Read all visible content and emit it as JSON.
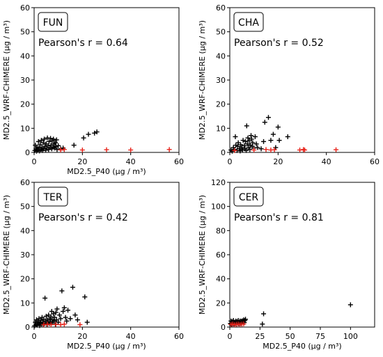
{
  "chart_data": [
    {
      "type": "scatter",
      "panel": "FUN",
      "label": "FUN",
      "annotation": "Pearson's r = 0.64",
      "xlabel": "MD2.5_P40 (µg / m³)",
      "ylabel": "MD2.5_WRF-CHIMERE (µg / m³)",
      "xlim": [
        0,
        60
      ],
      "ylim": [
        0,
        60
      ],
      "xticks": [
        0,
        20,
        40,
        60
      ],
      "yticks": [
        0,
        10,
        20,
        30,
        40,
        50,
        60
      ],
      "series": [
        {
          "color": "#000000",
          "points": [
            [
              0.3,
              0.8
            ],
            [
              0.5,
              3.0
            ],
            [
              0.8,
              1.5
            ],
            [
              1,
              0.5
            ],
            [
              1.2,
              2.2
            ],
            [
              1.5,
              1.0
            ],
            [
              1.8,
              4.5
            ],
            [
              2,
              1.8
            ],
            [
              2.2,
              0.6
            ],
            [
              2.5,
              3.2
            ],
            [
              2.8,
              1.2
            ],
            [
              3,
              5.0
            ],
            [
              3.2,
              2.0
            ],
            [
              3.5,
              0.8
            ],
            [
              3.8,
              4.0
            ],
            [
              4,
              1.5
            ],
            [
              4.2,
              5.5
            ],
            [
              4.5,
              2.5
            ],
            [
              4.8,
              0.9
            ],
            [
              5,
              3.5
            ],
            [
              5.2,
              1.8
            ],
            [
              5.5,
              6.0
            ],
            [
              5.8,
              2.8
            ],
            [
              6,
              1.2
            ],
            [
              6.2,
              4.5
            ],
            [
              6.5,
              2.0
            ],
            [
              6.8,
              5.8
            ],
            [
              7,
              3.0
            ],
            [
              7.3,
              1.5
            ],
            [
              7.5,
              4.8
            ],
            [
              7.8,
              2.2
            ],
            [
              8,
              5.5
            ],
            [
              8.3,
              3.5
            ],
            [
              8.5,
              1.8
            ],
            [
              8.8,
              4.0
            ],
            [
              9,
              2.5
            ],
            [
              9.3,
              5.2
            ],
            [
              9.5,
              1.2
            ],
            [
              10,
              2.8
            ],
            [
              11,
              1.5
            ],
            [
              12,
              1.8
            ],
            [
              16.5,
              3.0
            ],
            [
              20.5,
              6.0
            ],
            [
              22.5,
              7.5
            ],
            [
              25,
              8.0
            ],
            [
              26,
              8.5
            ]
          ]
        },
        {
          "color": "#e8231a",
          "points": [
            [
              11,
              1.0
            ],
            [
              12.5,
              1.2
            ],
            [
              20,
              1.0
            ],
            [
              30,
              1.1
            ],
            [
              40,
              1.0
            ],
            [
              56,
              1.2
            ]
          ]
        }
      ]
    },
    {
      "type": "scatter",
      "panel": "CHA",
      "label": "CHA",
      "annotation": "Pearson's r = 0.52",
      "xlabel": "",
      "ylabel": "MD2.5_WRF-CHIMERE (µg / m³)",
      "xlim": [
        0,
        60
      ],
      "ylim": [
        0,
        60
      ],
      "xticks": [
        0,
        20,
        40,
        60
      ],
      "yticks": [
        0,
        10,
        20,
        30,
        40,
        50,
        60
      ],
      "series": [
        {
          "color": "#000000",
          "points": [
            [
              0.5,
              1.0
            ],
            [
              1,
              0.5
            ],
            [
              1.5,
              2.0
            ],
            [
              2,
              1.2
            ],
            [
              2.3,
              6.5
            ],
            [
              2.5,
              3.0
            ],
            [
              3,
              0.8
            ],
            [
              3.3,
              2.5
            ],
            [
              3.5,
              4.0
            ],
            [
              4,
              1.5
            ],
            [
              4.3,
              0.6
            ],
            [
              4.5,
              3.2
            ],
            [
              5,
              2.0
            ],
            [
              5.3,
              1.0
            ],
            [
              5.5,
              5.0
            ],
            [
              6,
              2.8
            ],
            [
              6.3,
              1.5
            ],
            [
              6.5,
              4.5
            ],
            [
              6.8,
              0.8
            ],
            [
              7,
              11.0
            ],
            [
              7.3,
              3.5
            ],
            [
              7.5,
              6.0
            ],
            [
              7.8,
              2.0
            ],
            [
              8,
              4.8
            ],
            [
              8.3,
              1.2
            ],
            [
              8.5,
              3.0
            ],
            [
              8.8,
              7.0
            ],
            [
              9,
              5.5
            ],
            [
              9.3,
              2.5
            ],
            [
              9.5,
              4.0
            ],
            [
              10,
              1.8
            ],
            [
              10.5,
              6.5
            ],
            [
              11,
              3.5
            ],
            [
              11.5,
              2.0
            ],
            [
              13,
              1.5
            ],
            [
              14,
              4.5
            ],
            [
              14.5,
              12.5
            ],
            [
              16,
              14.5
            ],
            [
              17,
              5.0
            ],
            [
              18,
              7.5
            ],
            [
              19,
              2.0
            ],
            [
              20,
              10.5
            ],
            [
              20.5,
              5.0
            ],
            [
              24,
              6.5
            ]
          ]
        },
        {
          "color": "#e8231a",
          "points": [
            [
              2,
              0.8
            ],
            [
              10,
              1.0
            ],
            [
              15,
              1.2
            ],
            [
              17,
              1.0
            ],
            [
              18.5,
              1.1
            ],
            [
              29,
              1.0
            ],
            [
              30.5,
              1.2
            ],
            [
              31,
              1.0
            ],
            [
              44,
              1.1
            ]
          ]
        }
      ]
    },
    {
      "type": "scatter",
      "panel": "TER",
      "label": "TER",
      "annotation": "Pearson's r = 0.42",
      "xlabel": "MD2.5_P40 (µg / m³)",
      "ylabel": "MD2.5_WRF-CHIMERE (µg / m³)",
      "xlim": [
        0,
        60
      ],
      "ylim": [
        0,
        60
      ],
      "xticks": [
        0,
        20,
        40,
        60
      ],
      "yticks": [
        0,
        10,
        20,
        30,
        40,
        50,
        60
      ],
      "series": [
        {
          "color": "#000000",
          "points": [
            [
              0.2,
              0.5
            ],
            [
              0.5,
              2.0
            ],
            [
              0.8,
              1.0
            ],
            [
              1,
              3.0
            ],
            [
              1.3,
              0.8
            ],
            [
              1.5,
              2.2
            ],
            [
              1.8,
              1.5
            ],
            [
              2,
              3.5
            ],
            [
              2.3,
              0.6
            ],
            [
              2.5,
              1.8
            ],
            [
              2.8,
              2.8
            ],
            [
              3,
              1.2
            ],
            [
              3.3,
              4.0
            ],
            [
              3.5,
              2.0
            ],
            [
              3.8,
              0.9
            ],
            [
              4,
              3.2
            ],
            [
              4.3,
              1.5
            ],
            [
              4.5,
              12.0
            ],
            [
              4.8,
              2.5
            ],
            [
              5,
              4.5
            ],
            [
              5.3,
              1.0
            ],
            [
              5.5,
              3.0
            ],
            [
              5.8,
              2.0
            ],
            [
              6,
              5.0
            ],
            [
              6.3,
              1.5
            ],
            [
              6.5,
              3.5
            ],
            [
              6.8,
              2.2
            ],
            [
              7,
              4.2
            ],
            [
              7.3,
              6.5
            ],
            [
              7.5,
              1.8
            ],
            [
              7.8,
              3.0
            ],
            [
              8,
              5.5
            ],
            [
              8.3,
              2.5
            ],
            [
              8.5,
              4.0
            ],
            [
              8.8,
              1.2
            ],
            [
              9,
              6.0
            ],
            [
              9.3,
              3.0
            ],
            [
              9.5,
              7.5
            ],
            [
              10,
              2.0
            ],
            [
              10.5,
              5.0
            ],
            [
              11,
              3.5
            ],
            [
              11.5,
              15.0
            ],
            [
              12,
              6.5
            ],
            [
              12.5,
              8.0
            ],
            [
              13,
              4.0
            ],
            [
              13.5,
              2.5
            ],
            [
              14,
              7.0
            ],
            [
              15,
              3.5
            ],
            [
              16,
              16.5
            ],
            [
              17,
              5.0
            ],
            [
              18,
              3.0
            ],
            [
              21,
              12.5
            ],
            [
              22,
              2.0
            ]
          ]
        },
        {
          "color": "#e8231a",
          "points": [
            [
              4,
              1.0
            ],
            [
              5.5,
              1.2
            ],
            [
              7,
              1.0
            ],
            [
              9,
              1.1
            ],
            [
              11,
              1.0
            ],
            [
              12.5,
              1.2
            ],
            [
              19,
              1.0
            ]
          ]
        }
      ]
    },
    {
      "type": "scatter",
      "panel": "CER",
      "label": "CER",
      "annotation": "Pearson's r = 0.81",
      "xlabel": "MD2.5_P40 (µg / m³)",
      "ylabel": "MD2.5_WRF-CHIMERE (µg / m³)",
      "xlim": [
        0,
        120
      ],
      "ylim": [
        0,
        120
      ],
      "xticks": [
        0,
        25,
        50,
        75,
        100
      ],
      "yticks": [
        0,
        20,
        40,
        60,
        80,
        100,
        120
      ],
      "series": [
        {
          "color": "#000000",
          "points": [
            [
              0.5,
              3.0
            ],
            [
              1,
              5.0
            ],
            [
              1.5,
              2.0
            ],
            [
              2,
              4.5
            ],
            [
              2.5,
              3.2
            ],
            [
              3,
              5.5
            ],
            [
              3.5,
              2.5
            ],
            [
              4,
              4.0
            ],
            [
              4.5,
              3.0
            ],
            [
              5,
              5.0
            ],
            [
              5.5,
              2.2
            ],
            [
              6,
              4.5
            ],
            [
              6.5,
              3.5
            ],
            [
              7,
              5.5
            ],
            [
              7.5,
              2.8
            ],
            [
              8,
              4.0
            ],
            [
              8.5,
              5.0
            ],
            [
              9,
              3.2
            ],
            [
              9.5,
              4.8
            ],
            [
              10,
              3.5
            ],
            [
              10.5,
              5.2
            ],
            [
              11,
              4.0
            ],
            [
              11.5,
              6.0
            ],
            [
              12,
              3.8
            ],
            [
              12.5,
              5.5
            ],
            [
              13,
              6.5
            ],
            [
              27,
              2.5
            ],
            [
              28,
              11.0
            ],
            [
              100,
              18.5
            ]
          ]
        },
        {
          "color": "#e8231a",
          "points": [
            [
              1,
              2.2
            ],
            [
              2.5,
              2.5
            ],
            [
              4,
              2.0
            ],
            [
              5.5,
              2.3
            ],
            [
              7,
              2.5
            ],
            [
              8.5,
              2.2
            ],
            [
              10,
              2.4
            ],
            [
              11.5,
              2.6
            ]
          ]
        }
      ]
    }
  ]
}
